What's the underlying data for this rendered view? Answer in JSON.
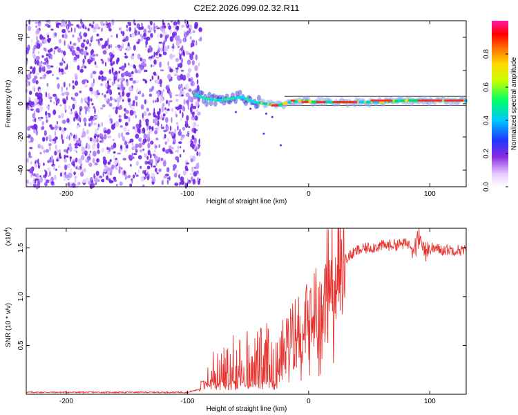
{
  "title": "C2E2.2026.099.02.32.R11",
  "colors": {
    "snr_line": "#e8322d",
    "scatter": "#7c3ae0",
    "frame": "#000000"
  },
  "chart_data": [
    {
      "type": "heatmap",
      "name": "spectrogram",
      "xlabel": "Height of straight line (km)",
      "ylabel": "Frequency (Hz)",
      "xlim": [
        -233,
        130
      ],
      "ylim": [
        -50,
        50
      ],
      "xticks": [
        -200,
        -100,
        0,
        100
      ],
      "yticks": [
        -40,
        -20,
        0,
        20,
        40
      ],
      "noise_region_x": [
        -233,
        -90
      ],
      "signal_track": {
        "x": [
          -95,
          -85,
          -75,
          -65,
          -55,
          -45,
          -35,
          -25,
          -15,
          -5,
          5,
          20,
          40,
          60,
          80,
          100,
          130
        ],
        "freq": [
          6,
          3,
          2,
          3,
          4,
          1,
          0,
          -1,
          1,
          2,
          1,
          1,
          1,
          1,
          2,
          2,
          2
        ]
      },
      "sidelines_freq": [
        4.5,
        -1.0
      ],
      "colorbar": {
        "label": "Normalized spectral amplitude",
        "range": [
          0.0,
          1.0
        ],
        "ticks": [
          "0.0",
          "0.2",
          "0.4",
          "0.6",
          "0.8"
        ]
      }
    },
    {
      "type": "line",
      "name": "snr",
      "xlabel": "Height of straight line (km)",
      "ylabel": "SNR (10 * v/v)",
      "y_multiplier": "(x10",
      "y_multiplier_exp": "4",
      "y_multiplier_close": ")",
      "xlim": [
        -233,
        130
      ],
      "ylim": [
        0,
        1.7
      ],
      "xticks": [
        -200,
        -100,
        0,
        100
      ],
      "yticks": [
        "0.5",
        "1.0",
        "1.5"
      ],
      "yticks_values": [
        0.5,
        1.0,
        1.5
      ],
      "x": [
        -233,
        -100,
        -90,
        -80,
        -70,
        -60,
        -50,
        -40,
        -30,
        -20,
        -10,
        0,
        10,
        20,
        30,
        40,
        50,
        60,
        70,
        80,
        90,
        100,
        110,
        120,
        130
      ],
      "y": [
        0.02,
        0.02,
        0.05,
        0.22,
        0.3,
        0.32,
        0.33,
        0.36,
        0.38,
        0.5,
        0.65,
        0.72,
        0.95,
        1.2,
        1.38,
        1.47,
        1.5,
        1.52,
        1.53,
        1.54,
        1.55,
        1.5,
        1.48,
        1.48,
        1.47
      ]
    }
  ]
}
